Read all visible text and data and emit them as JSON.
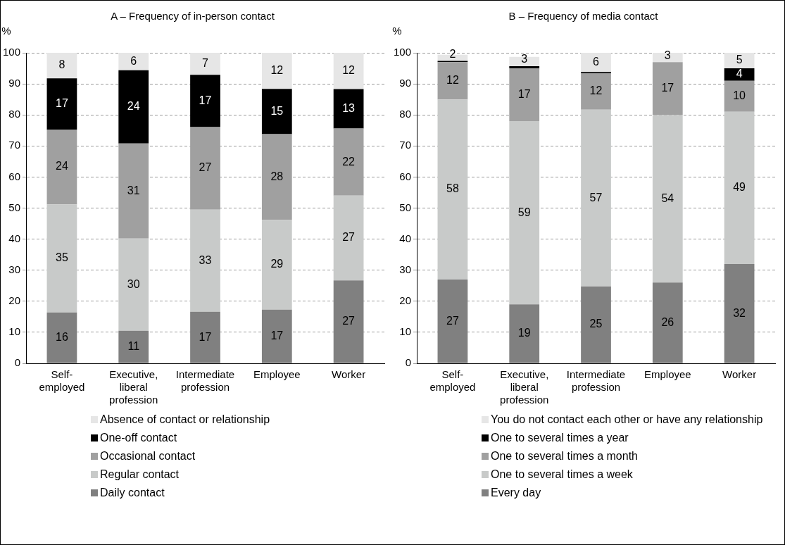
{
  "chart_data": [
    {
      "type": "bar",
      "title": "A – Frequency of in-person contact",
      "ylabel": "%",
      "categories": [
        "Self-employed",
        "Executive, liberal profession",
        "Intermediate profession",
        "Employee",
        "Worker"
      ],
      "stacked": true,
      "ylim": [
        0,
        100
      ],
      "yticks": [
        0,
        10,
        20,
        30,
        40,
        50,
        60,
        70,
        80,
        90,
        100
      ],
      "grid": "y",
      "legend": "bottom",
      "series": [
        {
          "name": "Daily contact",
          "color": "#808080",
          "values": [
            16.4,
            10.5,
            16.6,
            17.3,
            26.7
          ],
          "value_labels": [
            "16",
            "11",
            "17",
            "17",
            "27"
          ]
        },
        {
          "name": "Regular contact",
          "color": "#c8cac9",
          "values": [
            34.8,
            29.7,
            32.9,
            28.9,
            27.3
          ],
          "value_labels": [
            "35",
            "30",
            "33",
            "29",
            "27"
          ]
        },
        {
          "name": "Occasional contact",
          "color": "#a0a0a0",
          "values": [
            24.1,
            30.6,
            26.6,
            27.6,
            21.6
          ],
          "value_labels": [
            "24",
            "31",
            "27",
            "28",
            "22"
          ]
        },
        {
          "name": "One-off contact",
          "color": "#000000",
          "values": [
            16.5,
            23.6,
            16.8,
            14.6,
            12.7
          ],
          "value_labels": [
            "17",
            "24",
            "17",
            "15",
            "13"
          ]
        },
        {
          "name": "Absence of contact or relationship",
          "color": "#e6e6e6",
          "values": [
            8.2,
            5.6,
            7.1,
            11.6,
            11.7
          ],
          "value_labels": [
            "8",
            "6",
            "7",
            "12",
            "12"
          ]
        }
      ]
    },
    {
      "type": "bar",
      "title": "B – Frequency of media contact",
      "ylabel": "%",
      "categories": [
        "Self-employed",
        "Executive, liberal profession",
        "Intermediate profession",
        "Employee",
        "Worker"
      ],
      "stacked": true,
      "ylim": [
        0,
        100
      ],
      "yticks": [
        0,
        10,
        20,
        30,
        40,
        50,
        60,
        70,
        80,
        90,
        100
      ],
      "grid": "y",
      "legend": "bottom",
      "series": [
        {
          "name": "Every day",
          "color": "#808080",
          "values": [
            27,
            19,
            24.8,
            26,
            32
          ],
          "value_labels": [
            "27",
            "19",
            "25",
            "26",
            "32"
          ]
        },
        {
          "name": "One to several times a week",
          "color": "#c8cac9",
          "values": [
            58,
            59,
            56.9,
            54,
            49
          ],
          "value_labels": [
            "58",
            "59",
            "57",
            "54",
            "49"
          ]
        },
        {
          "name": "One to several times a month",
          "color": "#a0a0a0",
          "values": [
            12,
            17,
            11.7,
            17,
            10
          ],
          "value_labels": [
            "12",
            "17",
            "12",
            "17",
            "10"
          ]
        },
        {
          "name": "One to several times a year",
          "color": "#000000",
          "values": [
            0.4,
            0.7,
            0.4,
            0,
            4
          ],
          "value_labels": [
            null,
            null,
            null,
            null,
            "4"
          ]
        },
        {
          "name": "You do not contact each other or have any relationship",
          "color": "#e6e6e6",
          "values": [
            2,
            3,
            6.2,
            3,
            5
          ],
          "value_labels": [
            "2",
            "3",
            "6",
            "3",
            "5"
          ]
        }
      ]
    }
  ]
}
